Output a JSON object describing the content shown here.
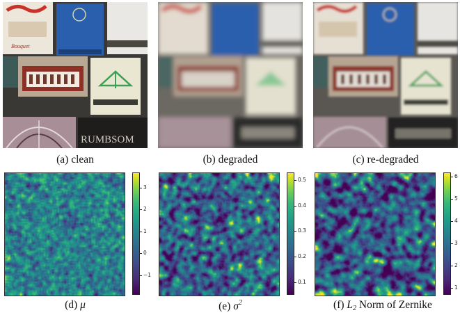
{
  "figure": {
    "panels": [
      {
        "id": "a",
        "caption_prefix": "(a)",
        "caption_text": "clean"
      },
      {
        "id": "b",
        "caption_prefix": "(b)",
        "caption_text": "degraded"
      },
      {
        "id": "c",
        "caption_prefix": "(c)",
        "caption_text": "re-degraded"
      },
      {
        "id": "d",
        "caption_prefix": "(d)",
        "caption_symbol": "μ"
      },
      {
        "id": "e",
        "caption_prefix": "(e)",
        "caption_symbol": "σ",
        "caption_sup": "2"
      },
      {
        "id": "f",
        "caption_prefix": "(f)",
        "caption_symbol": "L",
        "caption_sub": "2",
        "caption_text": "Norm of Zernike"
      }
    ],
    "image_texts": {
      "matchbook_script": "Bouquet",
      "matchbook_bottom": "RUMBSOM"
    }
  },
  "chart_data": [
    {
      "type": "heatmap",
      "panel": "d",
      "colormap": "viridis",
      "colorbar_ticks": [
        "3",
        "2",
        "1",
        "0",
        "−1"
      ],
      "range": [
        -1.9,
        3.7
      ]
    },
    {
      "type": "heatmap",
      "panel": "e",
      "colormap": "viridis",
      "colorbar_ticks": [
        "0.5",
        "0.4",
        "0.3",
        "0.2",
        "0.1"
      ],
      "range": [
        0.05,
        0.53
      ]
    },
    {
      "type": "heatmap",
      "panel": "f",
      "colormap": "viridis",
      "colorbar_ticks": [
        "6",
        "5",
        "4",
        "3",
        "2",
        "1"
      ],
      "range": [
        0.7,
        6.2
      ]
    }
  ]
}
